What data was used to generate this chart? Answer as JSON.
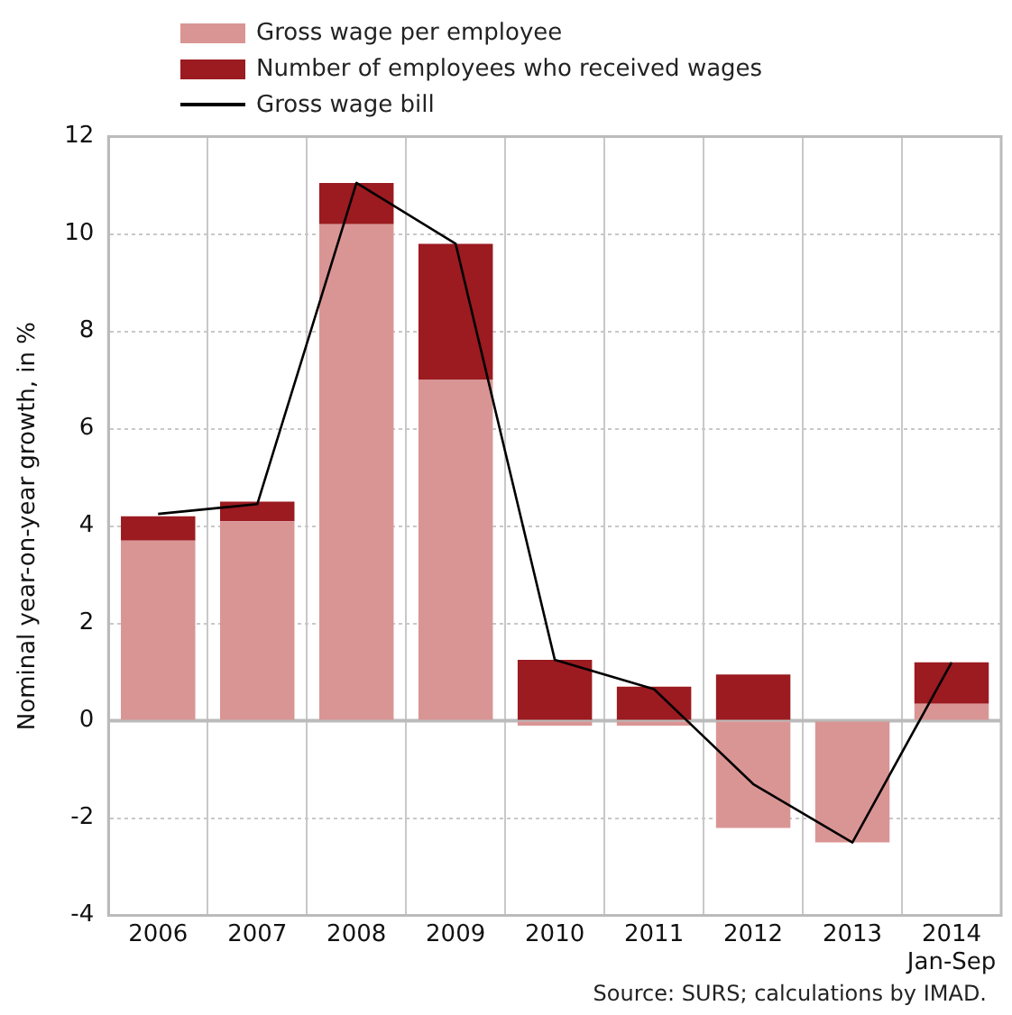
{
  "chart_data": {
    "type": "bar",
    "stacked": true,
    "categories": [
      "2006",
      "2007",
      "2008",
      "2009",
      "2010",
      "2011",
      "2012",
      "2013",
      "2014\nJan-Sep"
    ],
    "series": [
      {
        "name": "Gross wage per employee",
        "color": "#d99594",
        "values": [
          3.7,
          4.1,
          10.2,
          7.0,
          -0.1,
          -0.1,
          -2.2,
          -2.5,
          0.35
        ]
      },
      {
        "name": "Number of employees who received wages",
        "color": "#9b1b20",
        "values": [
          0.5,
          0.4,
          0.85,
          2.8,
          1.25,
          0.7,
          0.95,
          0,
          0.85
        ]
      },
      {
        "name": "Gross wage bill",
        "type": "line",
        "color": "#000000",
        "values": [
          4.25,
          4.45,
          11.05,
          9.8,
          1.25,
          0.65,
          -1.3,
          -2.5,
          1.2
        ]
      }
    ],
    "ylabel": "Nominal year-on-year growth, in %",
    "ylim": [
      -4,
      12
    ],
    "yticks": [
      -4,
      -2,
      0,
      2,
      4,
      6,
      8,
      10,
      12
    ],
    "grid": true,
    "ref_lines": [
      {
        "axis": "y",
        "value": 0,
        "color": "#bbbbbb"
      }
    ],
    "legend": "top",
    "marker": "none",
    "line_style": "solid",
    "annotations": [
      "Source: SURS; calculations by IMAD."
    ]
  }
}
